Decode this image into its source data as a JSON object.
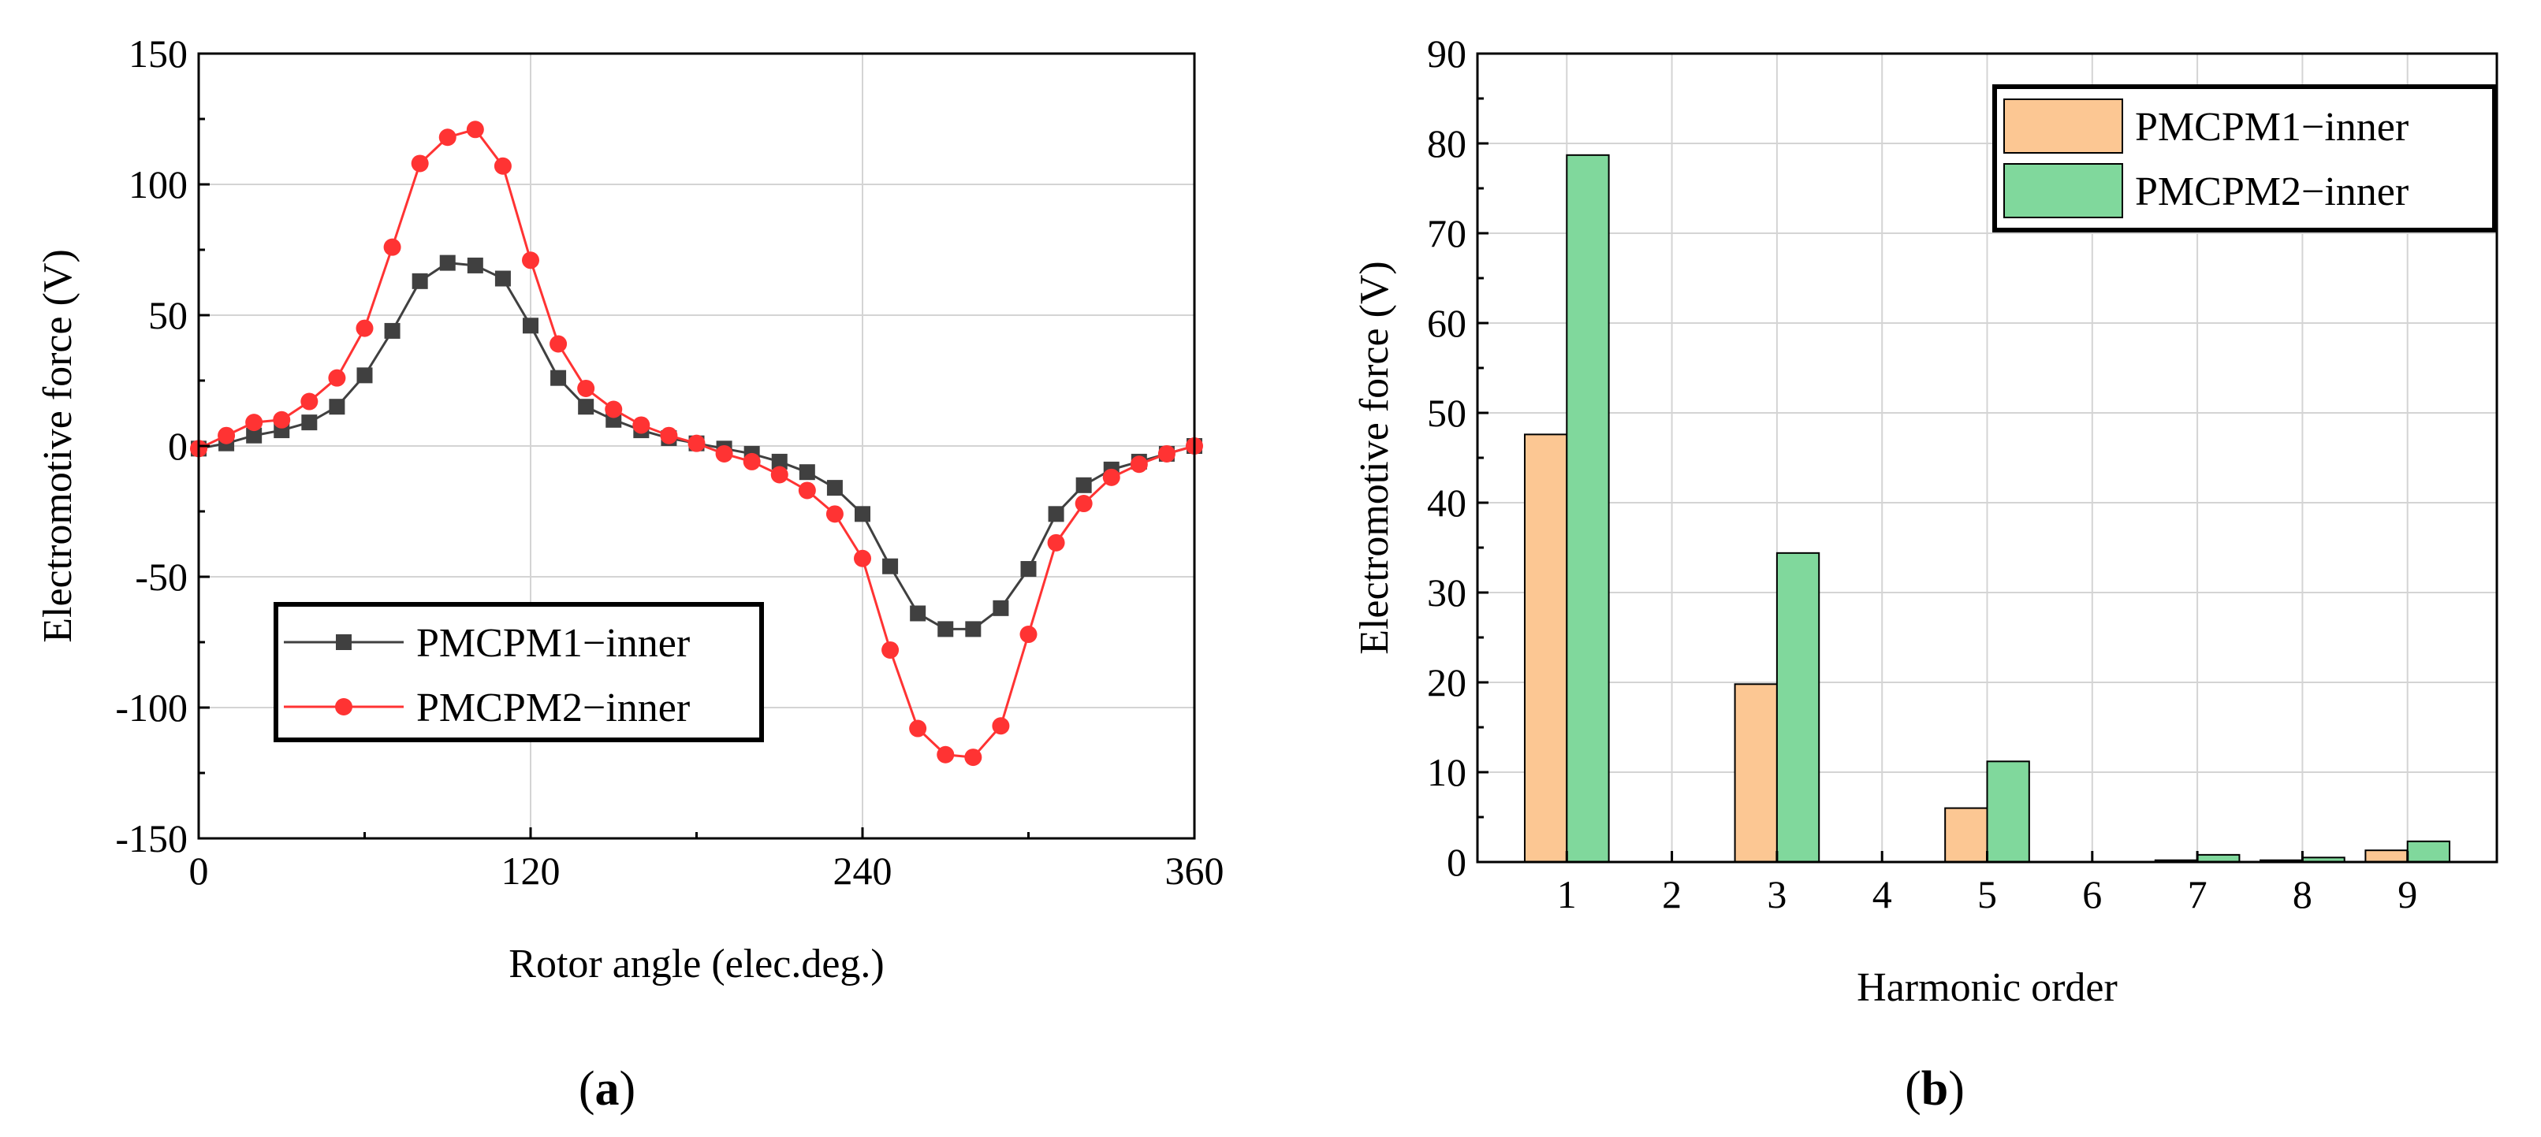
{
  "colors": {
    "series1_line": "#404040",
    "series2_line": "#ff3333",
    "bar1_fill": "#fcc793",
    "bar2_fill": "#80d89c",
    "grid": "#d4d4d4"
  },
  "chart_data": [
    {
      "type": "line",
      "panel_label": "a",
      "xlabel": "Rotor angle (elec.deg.)",
      "ylabel": "Electromotive force (V)",
      "xlim": [
        0,
        360
      ],
      "ylim": [
        -150,
        150
      ],
      "xticks": [
        0,
        120,
        240,
        360
      ],
      "xtick_labels": [
        "0",
        "120",
        "240",
        "360"
      ],
      "yticks": [
        -150,
        -100,
        -50,
        0,
        50,
        100,
        150
      ],
      "ytick_labels": [
        "-150",
        "-100",
        "-50",
        "0",
        "50",
        "100",
        "150"
      ],
      "grid": true,
      "legend_position": "bottom-left",
      "x": [
        0,
        10,
        20,
        30,
        40,
        50,
        60,
        70,
        80,
        90,
        100,
        110,
        120,
        130,
        140,
        150,
        160,
        170,
        180,
        190,
        200,
        210,
        220,
        230,
        240,
        250,
        260,
        270,
        280,
        290,
        300,
        310,
        320,
        330,
        340,
        350,
        360
      ],
      "series": [
        {
          "name": "PMCPM1−inner",
          "marker": "square",
          "values": [
            -1,
            1,
            4,
            6,
            9,
            15,
            27,
            44,
            63,
            70,
            69,
            64,
            46,
            26,
            15,
            10,
            6,
            3,
            1,
            -1,
            -3,
            -6,
            -10,
            -16,
            -26,
            -46,
            -64,
            -70,
            -70,
            -62,
            -47,
            -26,
            -15,
            -9,
            -6,
            -3,
            0
          ]
        },
        {
          "name": "PMCPM2−inner",
          "marker": "circle",
          "values": [
            -1,
            4,
            9,
            10,
            17,
            26,
            45,
            76,
            108,
            118,
            121,
            107,
            71,
            39,
            22,
            14,
            8,
            4,
            1,
            -3,
            -6,
            -11,
            -17,
            -26,
            -43,
            -78,
            -108,
            -118,
            -119,
            -107,
            -72,
            -37,
            -22,
            -12,
            -7,
            -3,
            0
          ]
        }
      ]
    },
    {
      "type": "bar",
      "panel_label": "b",
      "xlabel": "Harmonic order",
      "ylabel": "Electromotive force (V)",
      "ylim": [
        0,
        90
      ],
      "yticks": [
        0,
        10,
        20,
        30,
        40,
        50,
        60,
        70,
        80,
        90
      ],
      "ytick_labels": [
        "0",
        "10",
        "20",
        "30",
        "40",
        "50",
        "60",
        "70",
        "80",
        "90"
      ],
      "grid": true,
      "legend_position": "top-right",
      "categories": [
        "1",
        "2",
        "3",
        "4",
        "5",
        "6",
        "7",
        "8",
        "9"
      ],
      "series": [
        {
          "name": "PMCPM1−inner",
          "values": [
            47.6,
            0,
            19.8,
            0,
            6.0,
            0,
            0.2,
            0.2,
            1.3
          ]
        },
        {
          "name": "PMCPM2−inner",
          "values": [
            78.7,
            0,
            34.4,
            0,
            11.2,
            0,
            0.8,
            0.5,
            2.3
          ]
        }
      ]
    }
  ]
}
